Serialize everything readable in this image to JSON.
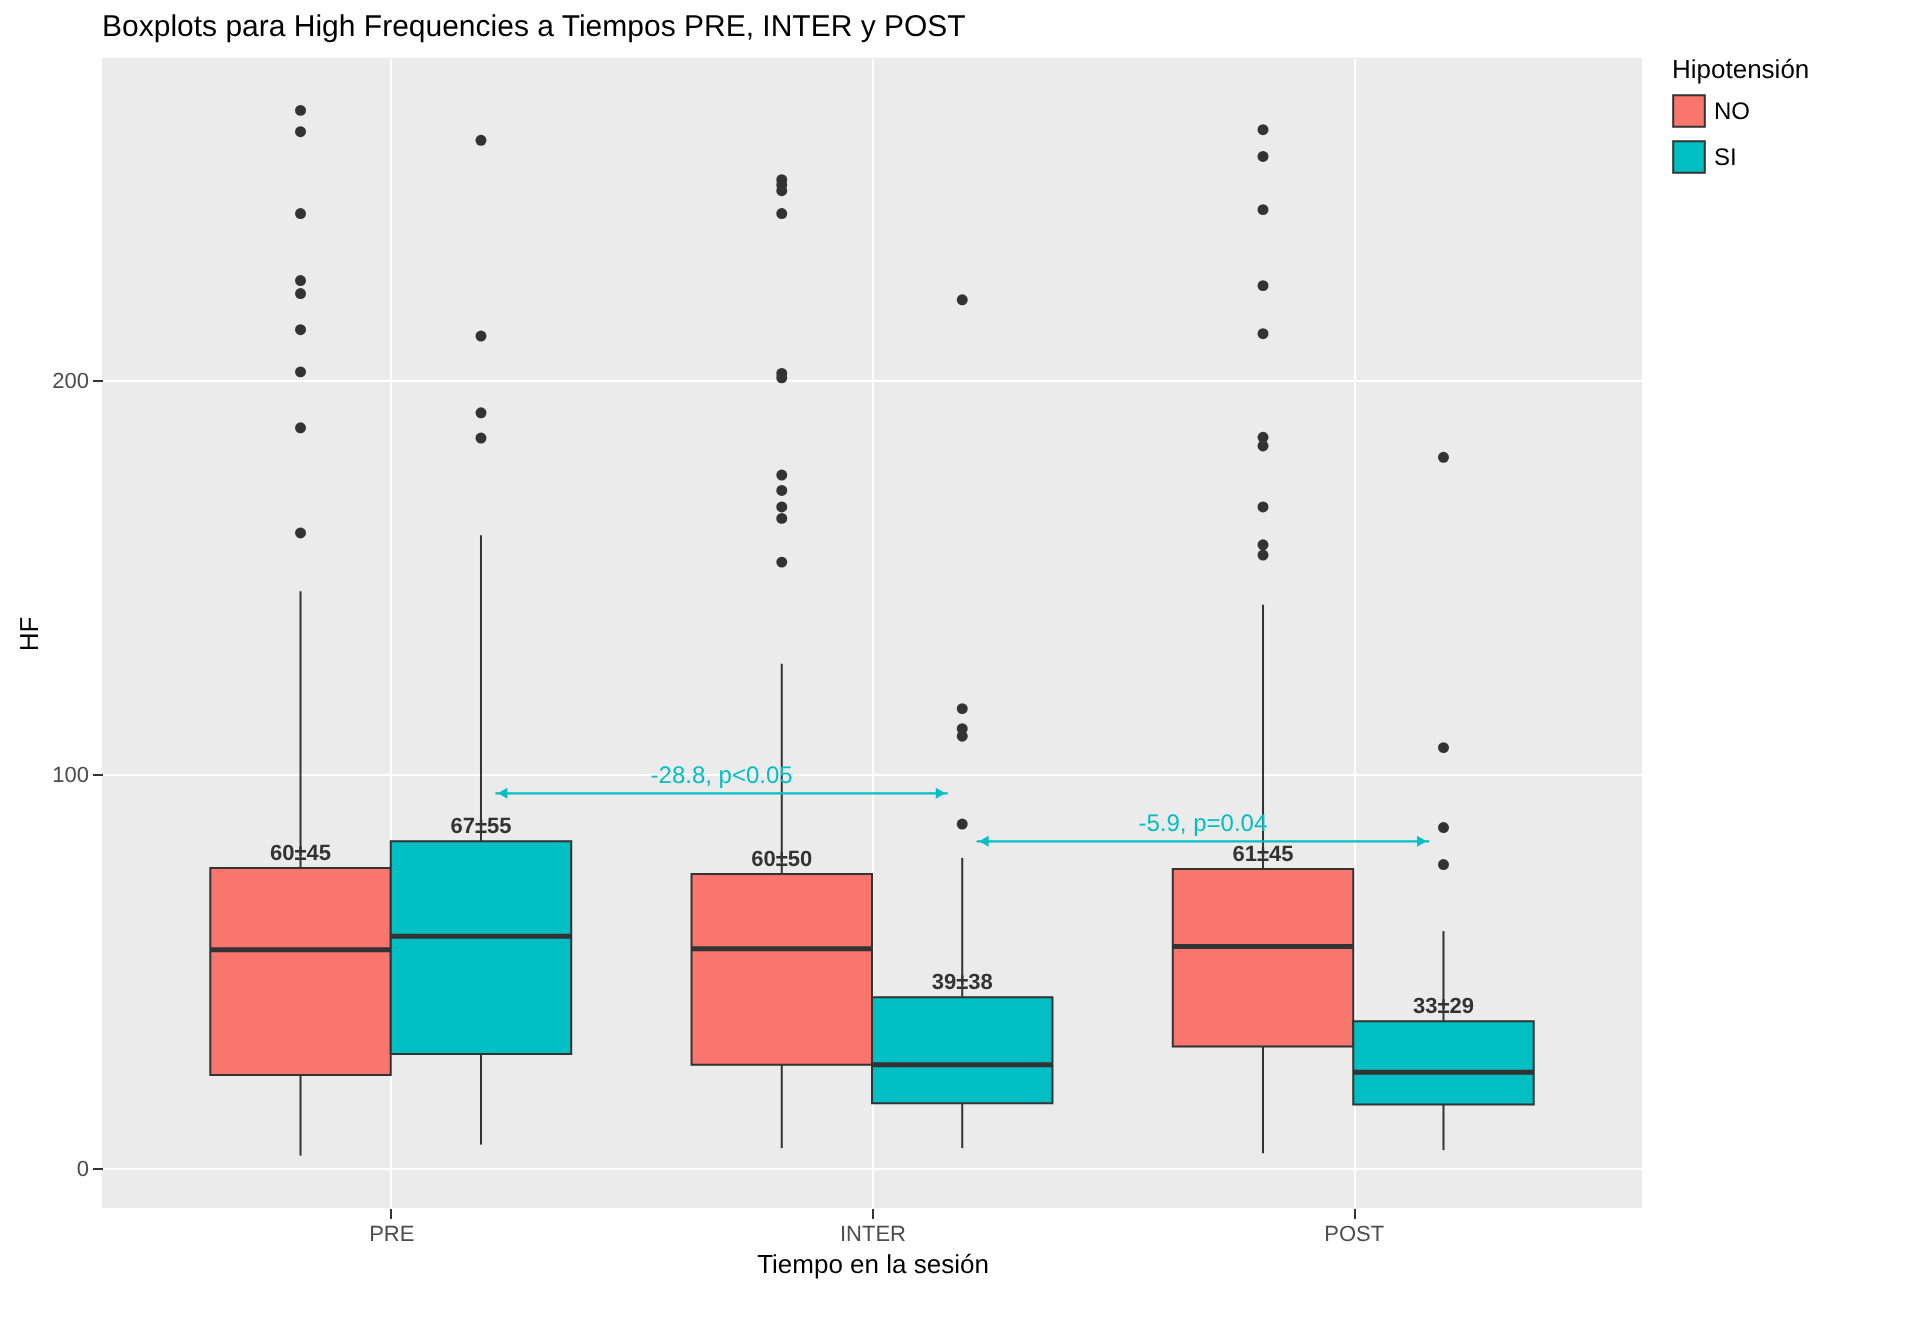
{
  "chart_data": {
    "type": "box",
    "title": "Boxplots para High Frequencies a Tiempos PRE, INTER y POST",
    "xlabel": "Tiempo en la sesión",
    "ylabel": "HF",
    "legend_title": "Hipotensión",
    "legend": "right",
    "grid": true,
    "categories": [
      "PRE",
      "INTER",
      "POST"
    ],
    "ylim": [
      -10,
      282
    ],
    "yticks": [
      0,
      100,
      200
    ],
    "series": [
      {
        "name": "NO",
        "color": "#f8766d",
        "value_labels": [
          "60±45",
          "60±50",
          "61±45"
        ],
        "boxes": [
          {
            "low": 3.3,
            "q1": 23.8,
            "median": 55.6,
            "q3": 76.3,
            "high": 146.6,
            "outliers": [
              268.7,
              263.3,
              242.5,
              225.5,
              222.2,
              213.0,
              202.3,
              188.1,
              161.4
            ]
          },
          {
            "low": 5.2,
            "q1": 26.4,
            "median": 55.8,
            "q3": 74.8,
            "high": 128.2,
            "outliers": [
              251.1,
              249.8,
              248.3,
              242.5,
              201.9,
              200.8,
              176.1,
              172.2,
              168.0,
              165.1,
              154.0
            ]
          },
          {
            "low": 3.9,
            "q1": 31.0,
            "median": 56.4,
            "q3": 76.1,
            "high": 143.2,
            "outliers": [
              263.8,
              257.0,
              243.5,
              224.2,
              212.0,
              185.7,
              183.5,
              168.0,
              158.4,
              155.8
            ]
          }
        ]
      },
      {
        "name": "SI",
        "color": "#00bfc4",
        "value_labels": [
          "67±55",
          "39±38",
          "33±29"
        ],
        "boxes": [
          {
            "low": 6.1,
            "q1": 29.1,
            "median": 59.0,
            "q3": 83.1,
            "high": 160.8,
            "outliers": [
              261.1,
              211.4,
              191.9,
              185.5
            ]
          },
          {
            "low": 5.2,
            "q1": 16.6,
            "median": 26.4,
            "q3": 43.5,
            "high": 78.9,
            "outliers": [
              220.6,
              116.8,
              111.7,
              109.8,
              87.5
            ]
          },
          {
            "low": 4.7,
            "q1": 16.3,
            "median": 24.5,
            "q3": 37.4,
            "high": 60.3,
            "outliers": [
              180.6,
              106.9,
              86.6,
              77.2
            ]
          }
        ]
      }
    ],
    "annotations": [
      "-28.8, p<0.05",
      "-5.9, p=0.04"
    ]
  }
}
